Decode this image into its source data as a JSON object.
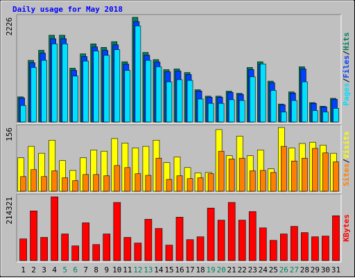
{
  "chart_data": [
    {
      "type": "bar",
      "title": "Daily usage for May 2018",
      "ylim": [
        0,
        2226
      ],
      "yticks": [
        2226
      ],
      "y_label_separator": "/",
      "series": [
        {
          "name": "Hits",
          "color": "#00805C",
          "values": [
            534,
            1311,
            1525,
            1845,
            1845,
            1144,
            1449,
            1662,
            1586,
            1708,
            1281,
            2226,
            1479,
            1327,
            1113,
            1128,
            1052,
            686,
            549,
            549,
            656,
            610,
            1159,
            1281,
            869,
            381,
            640,
            1174,
            412,
            335,
            503
          ]
        },
        {
          "name": "Files",
          "color": "#0040FF",
          "values": [
            513,
            1259,
            1464,
            1771,
            1771,
            1098,
            1391,
            1596,
            1523,
            1640,
            1230,
            2137,
            1420,
            1274,
            1068,
            1083,
            1010,
            659,
            527,
            527,
            630,
            586,
            1113,
            1230,
            834,
            366,
            614,
            1127,
            396,
            322,
            483
          ]
        },
        {
          "name": "Pages",
          "color": "#00E0FF",
          "values": [
            351,
            1159,
            1311,
            1662,
            1662,
            976,
            1296,
            1510,
            1418,
            1540,
            1098,
            2043,
            1311,
            1174,
            854,
            900,
            884,
            488,
            396,
            396,
            473,
            457,
            961,
            1235,
            671,
            213,
            457,
            854,
            244,
            213,
            290
          ]
        }
      ]
    },
    {
      "type": "bar",
      "ylim": [
        0,
        156
      ],
      "yticks": [
        156
      ],
      "y_label_separator": "/",
      "series": [
        {
          "name": "Visits",
          "color": "#FFFF00",
          "values": [
            82,
            110,
            93,
            125,
            75,
            51,
            82,
            101,
            98,
            129,
            118,
            106,
            110,
            125,
            70,
            84,
            58,
            45,
            46,
            151,
            87,
            135,
            87,
            101,
            55,
            156,
            106,
            117,
            120,
            113,
            93
          ]
        },
        {
          "name": "Sites",
          "color": "#FF8000",
          "values": [
            36,
            53,
            36,
            50,
            33,
            26,
            41,
            41,
            38,
            63,
            58,
            43,
            39,
            81,
            29,
            38,
            31,
            33,
            43,
            98,
            79,
            81,
            50,
            51,
            46,
            110,
            74,
            81,
            105,
            94,
            72
          ]
        }
      ]
    },
    {
      "type": "bar",
      "ylim": [
        0,
        214321
      ],
      "yticks": [
        214321
      ],
      "categories": [
        "1",
        "2",
        "3",
        "4",
        "5",
        "6",
        "7",
        "8",
        "9",
        "10",
        "11",
        "12",
        "13",
        "14",
        "15",
        "16",
        "17",
        "18",
        "19",
        "20",
        "21",
        "22",
        "23",
        "24",
        "25",
        "26",
        "27",
        "28",
        "29",
        "30",
        "31"
      ],
      "weekend": [
        4,
        5,
        11,
        12,
        18,
        19,
        25,
        26
      ],
      "weekend_color": "#00805C",
      "series": [
        {
          "name": "KBytes",
          "color": "#FF0000",
          "values": [
            73000,
            167000,
            78000,
            214321,
            89500,
            49500,
            127000,
            54000,
            89500,
            195500,
            78000,
            59000,
            139000,
            108000,
            52000,
            146000,
            70500,
            80000,
            176500,
            136000,
            195500,
            136000,
            164800,
            110000,
            68000,
            89500,
            115000,
            94200,
            80000,
            82400,
            150700
          ]
        }
      ]
    }
  ]
}
